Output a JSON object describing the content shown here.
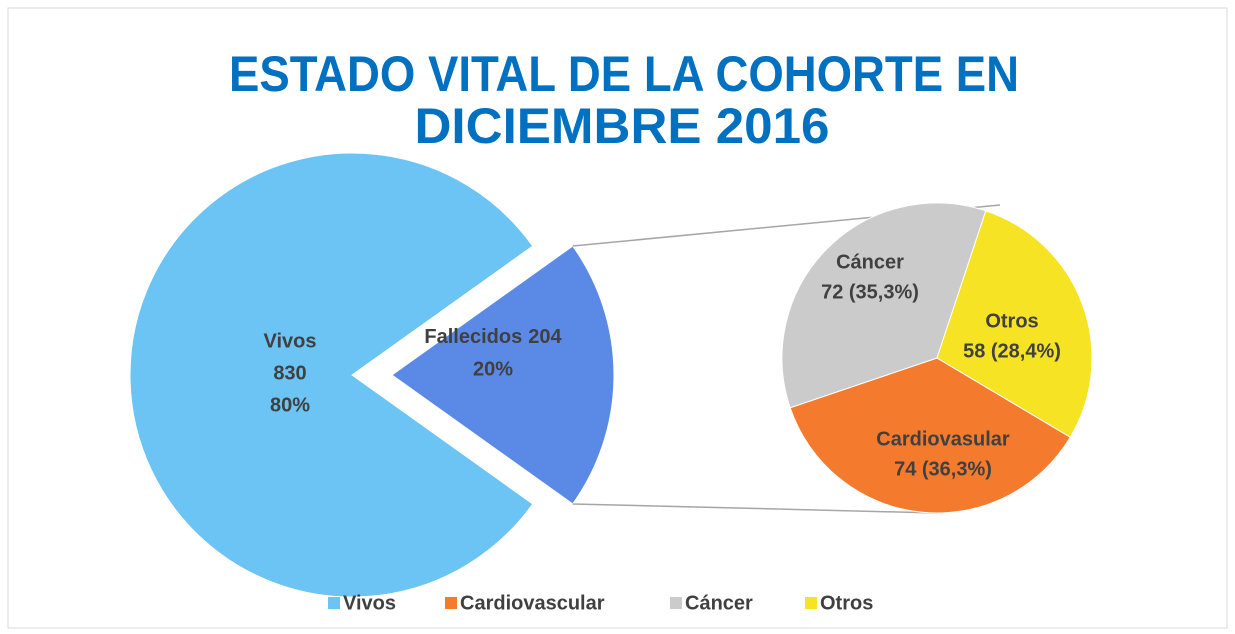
{
  "chart_data": {
    "type": "pie-of-pie",
    "title": [
      "ESTADO VITAL DE LA COHORTE EN",
      "DICIEMBRE 2016"
    ],
    "categories": [
      "Vivos",
      "Fallecidos"
    ],
    "values": [
      830,
      204
    ],
    "percent_labels": [
      "80%",
      "20%"
    ],
    "colors": [
      "#6cc4f4",
      "#5b8ae6"
    ],
    "secondary": {
      "categories": [
        "Cardiovasular",
        "Cáncer",
        "Otros"
      ],
      "values": [
        74,
        72,
        58
      ],
      "value_labels": [
        "74 (36,3%)",
        "72 (35,3%)",
        "58 (28,4%)"
      ],
      "colors": [
        "#f47b2e",
        "#cbcbcb",
        "#f6e324"
      ]
    },
    "legend": [
      {
        "name": "Vivos",
        "color": "#6cc4f4"
      },
      {
        "name": "Cardiovascular",
        "color": "#f47b2e"
      },
      {
        "name": "Cáncer",
        "color": "#cbcbcb"
      },
      {
        "name": "Otros",
        "color": "#f6e324"
      }
    ],
    "legend_position": "bottom"
  }
}
